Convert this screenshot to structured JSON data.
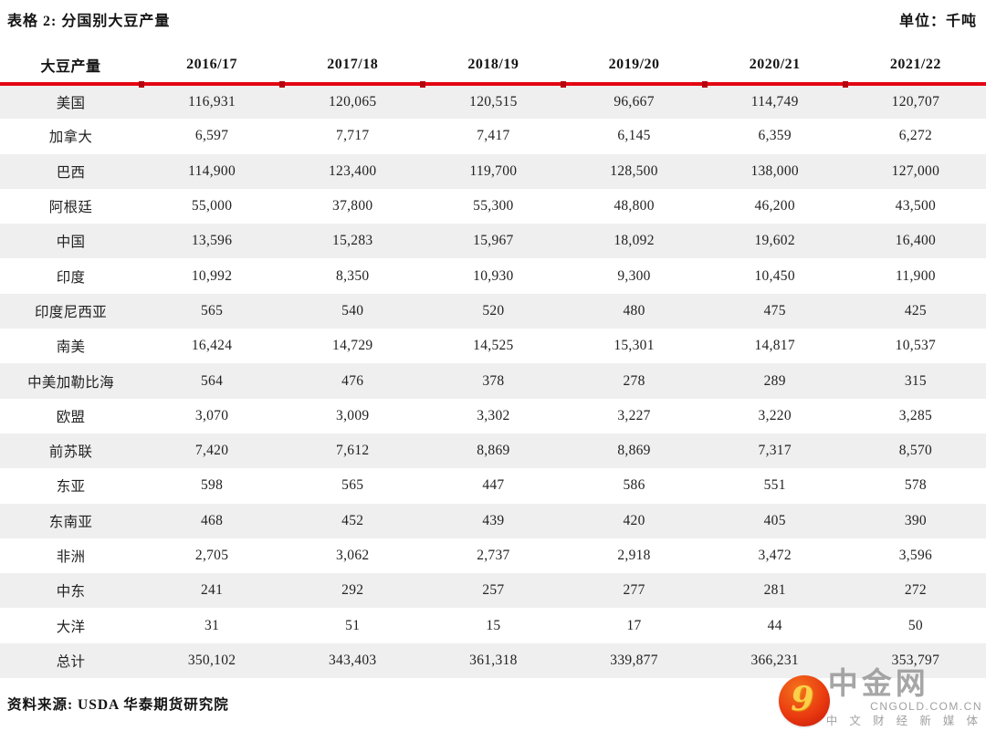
{
  "header": {
    "title": "表格 2: 分国别大豆产量",
    "unit_label": "单位：千吨"
  },
  "table": {
    "columns": [
      "大豆产量",
      "2016/17",
      "2017/18",
      "2018/19",
      "2019/20",
      "2020/21",
      "2021/22"
    ],
    "rows": [
      {
        "label": "美国",
        "values": [
          "116,931",
          "120,065",
          "120,515",
          "96,667",
          "114,749",
          "120,707"
        ]
      },
      {
        "label": "加拿大",
        "values": [
          "6,597",
          "7,717",
          "7,417",
          "6,145",
          "6,359",
          "6,272"
        ]
      },
      {
        "label": "巴西",
        "values": [
          "114,900",
          "123,400",
          "119,700",
          "128,500",
          "138,000",
          "127,000"
        ]
      },
      {
        "label": "阿根廷",
        "values": [
          "55,000",
          "37,800",
          "55,300",
          "48,800",
          "46,200",
          "43,500"
        ]
      },
      {
        "label": "中国",
        "values": [
          "13,596",
          "15,283",
          "15,967",
          "18,092",
          "19,602",
          "16,400"
        ]
      },
      {
        "label": "印度",
        "values": [
          "10,992",
          "8,350",
          "10,930",
          "9,300",
          "10,450",
          "11,900"
        ]
      },
      {
        "label": "印度尼西亚",
        "values": [
          "565",
          "540",
          "520",
          "480",
          "475",
          "425"
        ]
      },
      {
        "label": "南美",
        "values": [
          "16,424",
          "14,729",
          "14,525",
          "15,301",
          "14,817",
          "10,537"
        ]
      },
      {
        "label": "中美加勒比海",
        "values": [
          "564",
          "476",
          "378",
          "278",
          "289",
          "315"
        ]
      },
      {
        "label": "欧盟",
        "values": [
          "3,070",
          "3,009",
          "3,302",
          "3,227",
          "3,220",
          "3,285"
        ]
      },
      {
        "label": "前苏联",
        "values": [
          "7,420",
          "7,612",
          "8,869",
          "8,869",
          "7,317",
          "8,570"
        ]
      },
      {
        "label": "东亚",
        "values": [
          "598",
          "565",
          "447",
          "586",
          "551",
          "578"
        ]
      },
      {
        "label": "东南亚",
        "values": [
          "468",
          "452",
          "439",
          "420",
          "405",
          "390"
        ]
      },
      {
        "label": "非洲",
        "values": [
          "2,705",
          "3,062",
          "2,737",
          "2,918",
          "3,472",
          "3,596"
        ]
      },
      {
        "label": "中东",
        "values": [
          "241",
          "292",
          "257",
          "277",
          "281",
          "272"
        ]
      },
      {
        "label": "大洋",
        "values": [
          "31",
          "51",
          "15",
          "17",
          "44",
          "50"
        ]
      },
      {
        "label": "总计",
        "values": [
          "350,102",
          "343,403",
          "361,318",
          "339,877",
          "366,231",
          "353,797"
        ]
      }
    ],
    "accent_rule_color": "#e30613",
    "tick_color": "#b50410",
    "stripe_color": "#efefef"
  },
  "footer": {
    "source": "资料来源: USDA 华泰期货研究院"
  },
  "watermark": {
    "swirl_glyph": "9",
    "name": "中金网",
    "domain": "CNGOLD.COM.CN",
    "tagline": "中 文 财 经 新 媒 体",
    "badge_color": "#e23c10",
    "gold_color": "#fccf4a",
    "gray_color": "#929292"
  }
}
